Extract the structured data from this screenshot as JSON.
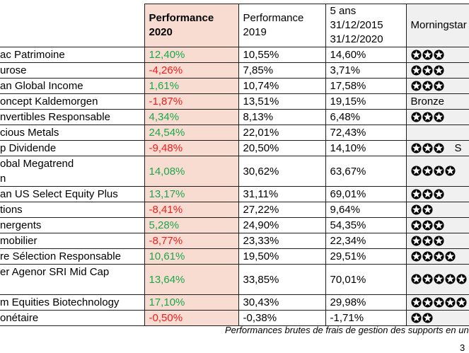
{
  "table": {
    "headers": {
      "name": "",
      "perf2020": "Performance\n2020",
      "perf2019": "Performance\n2019",
      "five_years": "5 ans\n31/12/2015\n31/12/2020",
      "morningstar": "Morningstar"
    },
    "rows": [
      {
        "name": "ac Patrimoine",
        "perf2020": "12,40%",
        "perf2019": "10,55%",
        "five_years": "14,60%",
        "rating_stars": 3,
        "rating_text": ""
      },
      {
        "name": "urose",
        "perf2020": "-4,26%",
        "perf2019": "7,85%",
        "five_years": "3,71%",
        "rating_stars": 3,
        "rating_text": ""
      },
      {
        "name": "an Global Income",
        "perf2020": "1,61%",
        "perf2019": "10,74%",
        "five_years": "17,58%",
        "rating_stars": 3,
        "rating_text": ""
      },
      {
        "name": "oncept Kaldemorgen",
        "perf2020": "-1,87%",
        "perf2019": "13,51%",
        "five_years": "19,15%",
        "rating_stars": 0,
        "rating_text": "Bronze"
      },
      {
        "name": "nvertibles Responsable",
        "perf2020": "4,34%",
        "perf2019": "8,13%",
        "five_years": "6,48%",
        "rating_stars": 3,
        "rating_text": ""
      },
      {
        "name": "cious Metals",
        "perf2020": "24,54%",
        "perf2019": "22,01%",
        "five_years": "72,43%",
        "rating_stars": 0,
        "rating_text": ""
      },
      {
        "name": "p Dividende",
        "perf2020": "-9,48%",
        "perf2019": "20,50%",
        "five_years": "14,10%",
        "rating_stars": 3,
        "rating_text": "S"
      },
      {
        "name": "obal Megatrend\nn",
        "perf2020": "14,08%",
        "perf2019": "30,62%",
        "five_years": "63,67%",
        "rating_stars": 4,
        "rating_text": ""
      },
      {
        "name": "an US Select Equity Plus",
        "perf2020": "13,17%",
        "perf2019": "31,11%",
        "five_years": "69,01%",
        "rating_stars": 3,
        "rating_text": ""
      },
      {
        "name": "tions",
        "perf2020": "-8,41%",
        "perf2019": "27,22%",
        "five_years": "9,64%",
        "rating_stars": 2,
        "rating_text": ""
      },
      {
        "name": "nergents",
        "perf2020": "5,28%",
        "perf2019": "24,90%",
        "five_years": "54,35%",
        "rating_stars": 3,
        "rating_text": ""
      },
      {
        "name": "mobilier",
        "perf2020": "-8,77%",
        "perf2019": "23,33%",
        "five_years": "22,34%",
        "rating_stars": 3,
        "rating_text": ""
      },
      {
        "name": "re Sélection Responsable",
        "perf2020": "10,61%",
        "perf2019": "19,50%",
        "five_years": "29,51%",
        "rating_stars": 4,
        "rating_text": ""
      },
      {
        "name": "er Agenor SRI Mid Cap\n ",
        "perf2020": "13,64%",
        "perf2019": "33,85%",
        "five_years": "70,01%",
        "rating_stars": 5,
        "rating_text": ""
      },
      {
        "name": "m Equities Biotechnology",
        "perf2020": "17,10%",
        "perf2019": "30,43%",
        "five_years": "29,98%",
        "rating_stars": 5,
        "rating_text": ""
      },
      {
        "name": "onétaire",
        "perf2020": "-0,50%",
        "perf2019": "-0,38%",
        "five_years": "-1,71%",
        "rating_stars": 2,
        "rating_text": ""
      }
    ]
  },
  "footer": {
    "note": "Performances brutes de frais de gestion des supports en uni",
    "page_number": "3"
  },
  "colors": {
    "positive_green": "#1aa74b",
    "negative_red": "#f11c1c",
    "perf2020_column_bg": "#f9dcd1",
    "morningstar_column_bg": "#f0f0f0",
    "border": "#1f1f1f"
  }
}
